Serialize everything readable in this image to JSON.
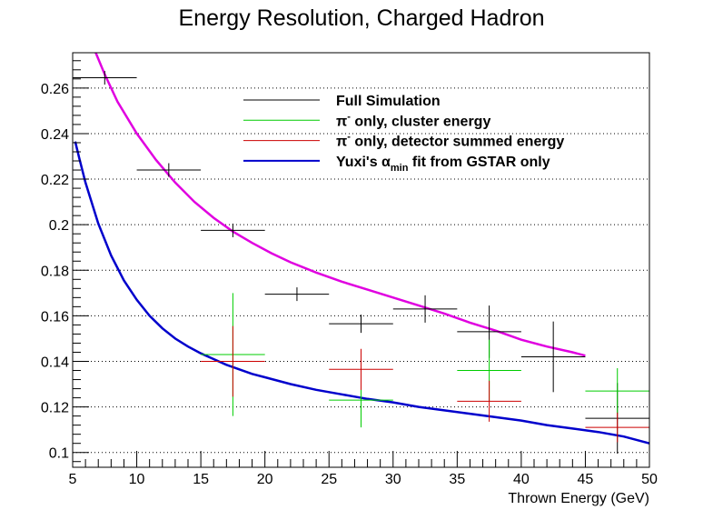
{
  "chart_data": {
    "type": "scatter",
    "title": "Energy Resolution, Charged Hadron",
    "xlabel": "Thrown Energy (GeV)",
    "ylabel": "",
    "xlim": [
      5,
      50
    ],
    "ylim": [
      0.0935,
      0.2755
    ],
    "x_ticks": [
      5,
      10,
      15,
      20,
      25,
      30,
      35,
      40,
      45,
      50
    ],
    "y_ticks": [
      0.1,
      0.12,
      0.14,
      0.16,
      0.18,
      0.2,
      0.22,
      0.24,
      0.26
    ],
    "y_tick_labels": [
      "0.1",
      "0.12",
      "0.14",
      "0.16",
      "0.18",
      "0.2",
      "0.22",
      "0.24",
      "0.26"
    ],
    "grid": {
      "x": false,
      "y": true,
      "style": "dotted"
    },
    "legend_position": "top-right",
    "series": [
      {
        "name": "Full Simulation",
        "kind": "errorbar",
        "color": "#000000",
        "points": [
          {
            "x": 7.5,
            "y": 0.2645,
            "xerr": 2.5,
            "yerr": 0.003
          },
          {
            "x": 12.5,
            "y": 0.224,
            "xerr": 2.5,
            "yerr": 0.003
          },
          {
            "x": 17.5,
            "y": 0.1975,
            "xerr": 2.5,
            "yerr": 0.003
          },
          {
            "x": 22.5,
            "y": 0.1695,
            "xerr": 2.5,
            "yerr": 0.003
          },
          {
            "x": 27.5,
            "y": 0.1565,
            "xerr": 2.5,
            "yerr": 0.004
          },
          {
            "x": 32.5,
            "y": 0.163,
            "xerr": 2.5,
            "yerr": 0.006
          },
          {
            "x": 37.5,
            "y": 0.153,
            "xerr": 2.5,
            "yerr": 0.0115
          },
          {
            "x": 42.5,
            "y": 0.142,
            "xerr": 2.5,
            "yerr": 0.0155
          },
          {
            "x": 47.5,
            "y": 0.115,
            "xerr": 2.5,
            "yerr": 0.0155
          }
        ]
      },
      {
        "name": "π⁻ only, cluster energy",
        "kind": "errorbar",
        "color": "#00cc00",
        "points": [
          {
            "x": 17.5,
            "y": 0.143,
            "xerr": 2.5,
            "yerr": 0.027
          },
          {
            "x": 27.5,
            "y": 0.123,
            "xerr": 2.5,
            "yerr": 0.012
          },
          {
            "x": 37.5,
            "y": 0.136,
            "xerr": 2.5,
            "yerr": 0.0135
          },
          {
            "x": 47.5,
            "y": 0.127,
            "xerr": 2.5,
            "yerr": 0.01
          }
        ]
      },
      {
        "name": "π⁻ only, detector summed energy",
        "kind": "errorbar",
        "color": "#cc0000",
        "points": [
          {
            "x": 17.5,
            "y": 0.14,
            "xerr": 2.5,
            "yerr": 0.0155
          },
          {
            "x": 27.5,
            "y": 0.1365,
            "xerr": 2.5,
            "yerr": 0.009
          },
          {
            "x": 37.5,
            "y": 0.1225,
            "xerr": 2.5,
            "yerr": 0.009
          },
          {
            "x": 47.5,
            "y": 0.111,
            "xerr": 2.5,
            "yerr": 0.0065
          }
        ]
      },
      {
        "name": "Yuxi's αmin fit from GSTAR only",
        "kind": "line",
        "color": "#0000cc",
        "x": [
          5.2,
          5.5,
          6,
          7,
          8,
          9,
          10,
          11,
          12,
          13,
          14,
          15,
          16,
          17,
          18,
          19,
          20,
          22,
          24,
          26,
          28,
          30,
          32,
          34,
          36,
          38,
          40,
          42,
          44,
          46,
          48,
          50
        ],
        "y": [
          0.2365,
          0.2295,
          0.2185,
          0.2005,
          0.1865,
          0.1755,
          0.167,
          0.16,
          0.1545,
          0.15,
          0.1465,
          0.1435,
          0.141,
          0.1385,
          0.1365,
          0.1345,
          0.133,
          0.13,
          0.1275,
          0.1255,
          0.1235,
          0.122,
          0.12,
          0.1185,
          0.117,
          0.1155,
          0.114,
          0.112,
          0.1105,
          0.109,
          0.107,
          0.104
        ]
      },
      {
        "name": "",
        "kind": "line",
        "color": "#e000e0",
        "x": [
          6.8,
          7.5,
          8.5,
          10,
          11.5,
          13,
          14.5,
          16,
          17.5,
          19,
          20.5,
          22,
          24,
          26,
          28,
          30,
          32,
          34,
          36,
          38,
          40,
          42,
          44,
          45
        ],
        "y": [
          0.2755,
          0.266,
          0.254,
          0.24,
          0.2285,
          0.2185,
          0.21,
          0.203,
          0.197,
          0.192,
          0.1875,
          0.1835,
          0.179,
          0.175,
          0.1715,
          0.168,
          0.1645,
          0.161,
          0.157,
          0.1535,
          0.1495,
          0.1465,
          0.144,
          0.1425
        ]
      }
    ],
    "legend": [
      {
        "prefix": "Full Simulation",
        "sup": "",
        "sub": "",
        "suffix": "",
        "color": "#000000"
      },
      {
        "prefix": "π",
        "sup": "-",
        "sub": "",
        "suffix": " only, cluster energy",
        "color": "#00cc00"
      },
      {
        "prefix": "π",
        "sup": "-",
        "sub": "",
        "suffix": " only, detector summed energy",
        "color": "#cc0000"
      },
      {
        "prefix": "Yuxi's α",
        "sup": "",
        "sub": "min",
        "suffix": " fit from GSTAR only",
        "color": "#0000cc"
      }
    ]
  }
}
